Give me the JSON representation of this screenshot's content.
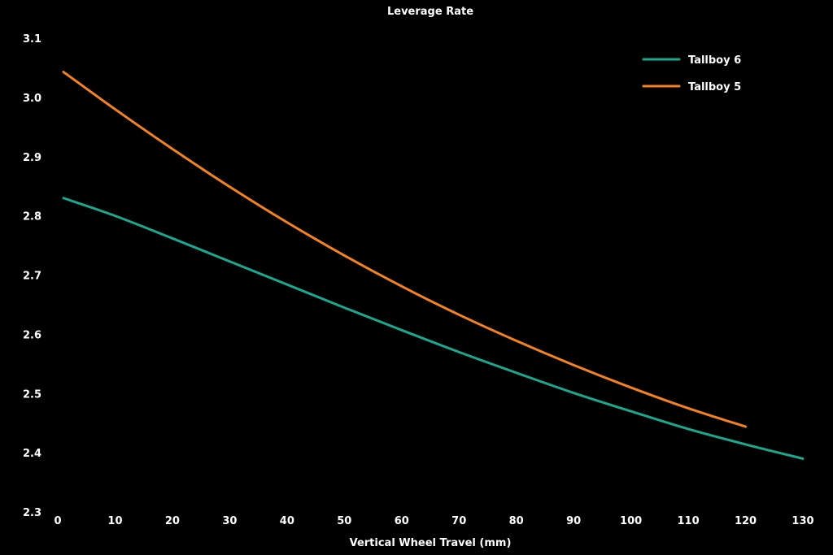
{
  "chart_data": {
    "type": "line",
    "title": "Leverage Rate",
    "xlabel": "Vertical Wheel Travel (mm)",
    "ylabel": "",
    "xlim": [
      0,
      130
    ],
    "ylim": [
      2.3,
      3.1
    ],
    "xticks": [
      "0",
      "10",
      "20",
      "30",
      "40",
      "50",
      "60",
      "70",
      "80",
      "90",
      "100",
      "110",
      "120",
      "130"
    ],
    "yticks": [
      "2.3",
      "2.4",
      "2.5",
      "2.6",
      "2.7",
      "2.8",
      "2.9",
      "3.0",
      "3.1"
    ],
    "grid": false,
    "legend_position": "top-right",
    "series": [
      {
        "name": "Tallboy 6",
        "color": "#1aa88f",
        "x": [
          1,
          10,
          20,
          30,
          40,
          50,
          60,
          70,
          80,
          90,
          100,
          110,
          120,
          130
        ],
        "y": [
          2.83,
          2.8,
          2.762,
          2.723,
          2.684,
          2.645,
          2.607,
          2.57,
          2.535,
          2.501,
          2.47,
          2.44,
          2.414,
          2.39
        ]
      },
      {
        "name": "Tallboy 5",
        "color": "#f58220",
        "x": [
          1,
          10,
          20,
          30,
          40,
          50,
          60,
          70,
          80,
          90,
          100,
          110,
          120
        ],
        "y": [
          3.043,
          2.98,
          2.913,
          2.849,
          2.789,
          2.733,
          2.681,
          2.633,
          2.589,
          2.548,
          2.51,
          2.475,
          2.444
        ]
      }
    ]
  }
}
